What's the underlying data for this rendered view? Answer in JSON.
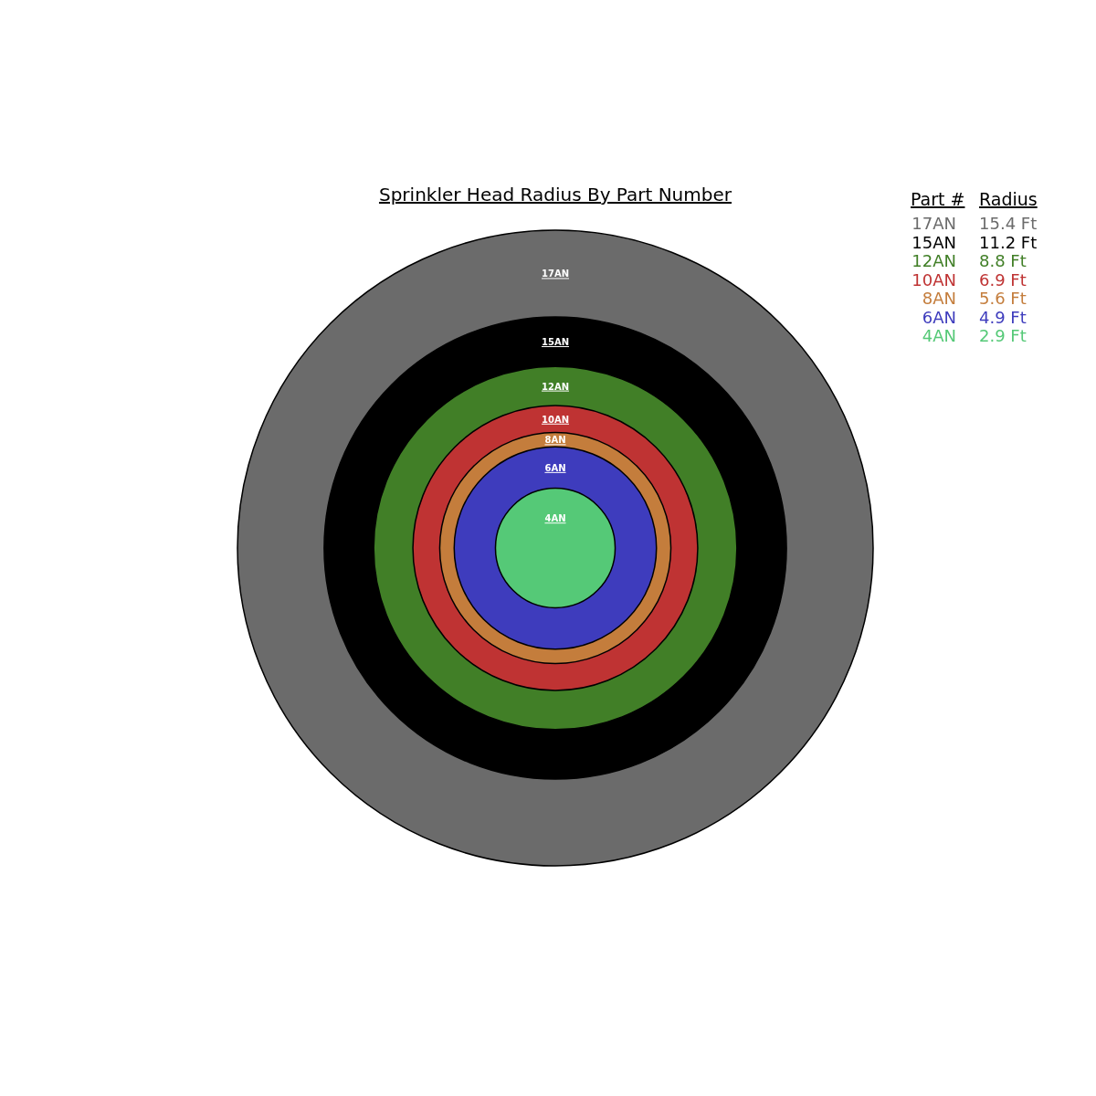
{
  "chart_data": {
    "type": "other",
    "title": "Sprinkler Head Radius By Part Number",
    "legend_title": "Part #",
    "annotations": [
      "Radius"
    ],
    "categories": [
      "17AN",
      "15AN",
      "12AN",
      "10AN",
      "8AN",
      "6AN",
      "4AN"
    ],
    "values": [
      15.4,
      11.2,
      8.8,
      6.9,
      5.6,
      4.9,
      2.9
    ],
    "value_labels": [
      "15.4 Ft",
      "11.2 Ft",
      "8.8 Ft",
      "6.9 Ft",
      "5.6 Ft",
      "4.9 Ft",
      "2.9 Ft"
    ],
    "colors": [
      "#6b6b6b",
      "#000000",
      "#417f27",
      "#bf3333",
      "#c47d3c",
      "#3e3cbd",
      "#55c977"
    ]
  }
}
